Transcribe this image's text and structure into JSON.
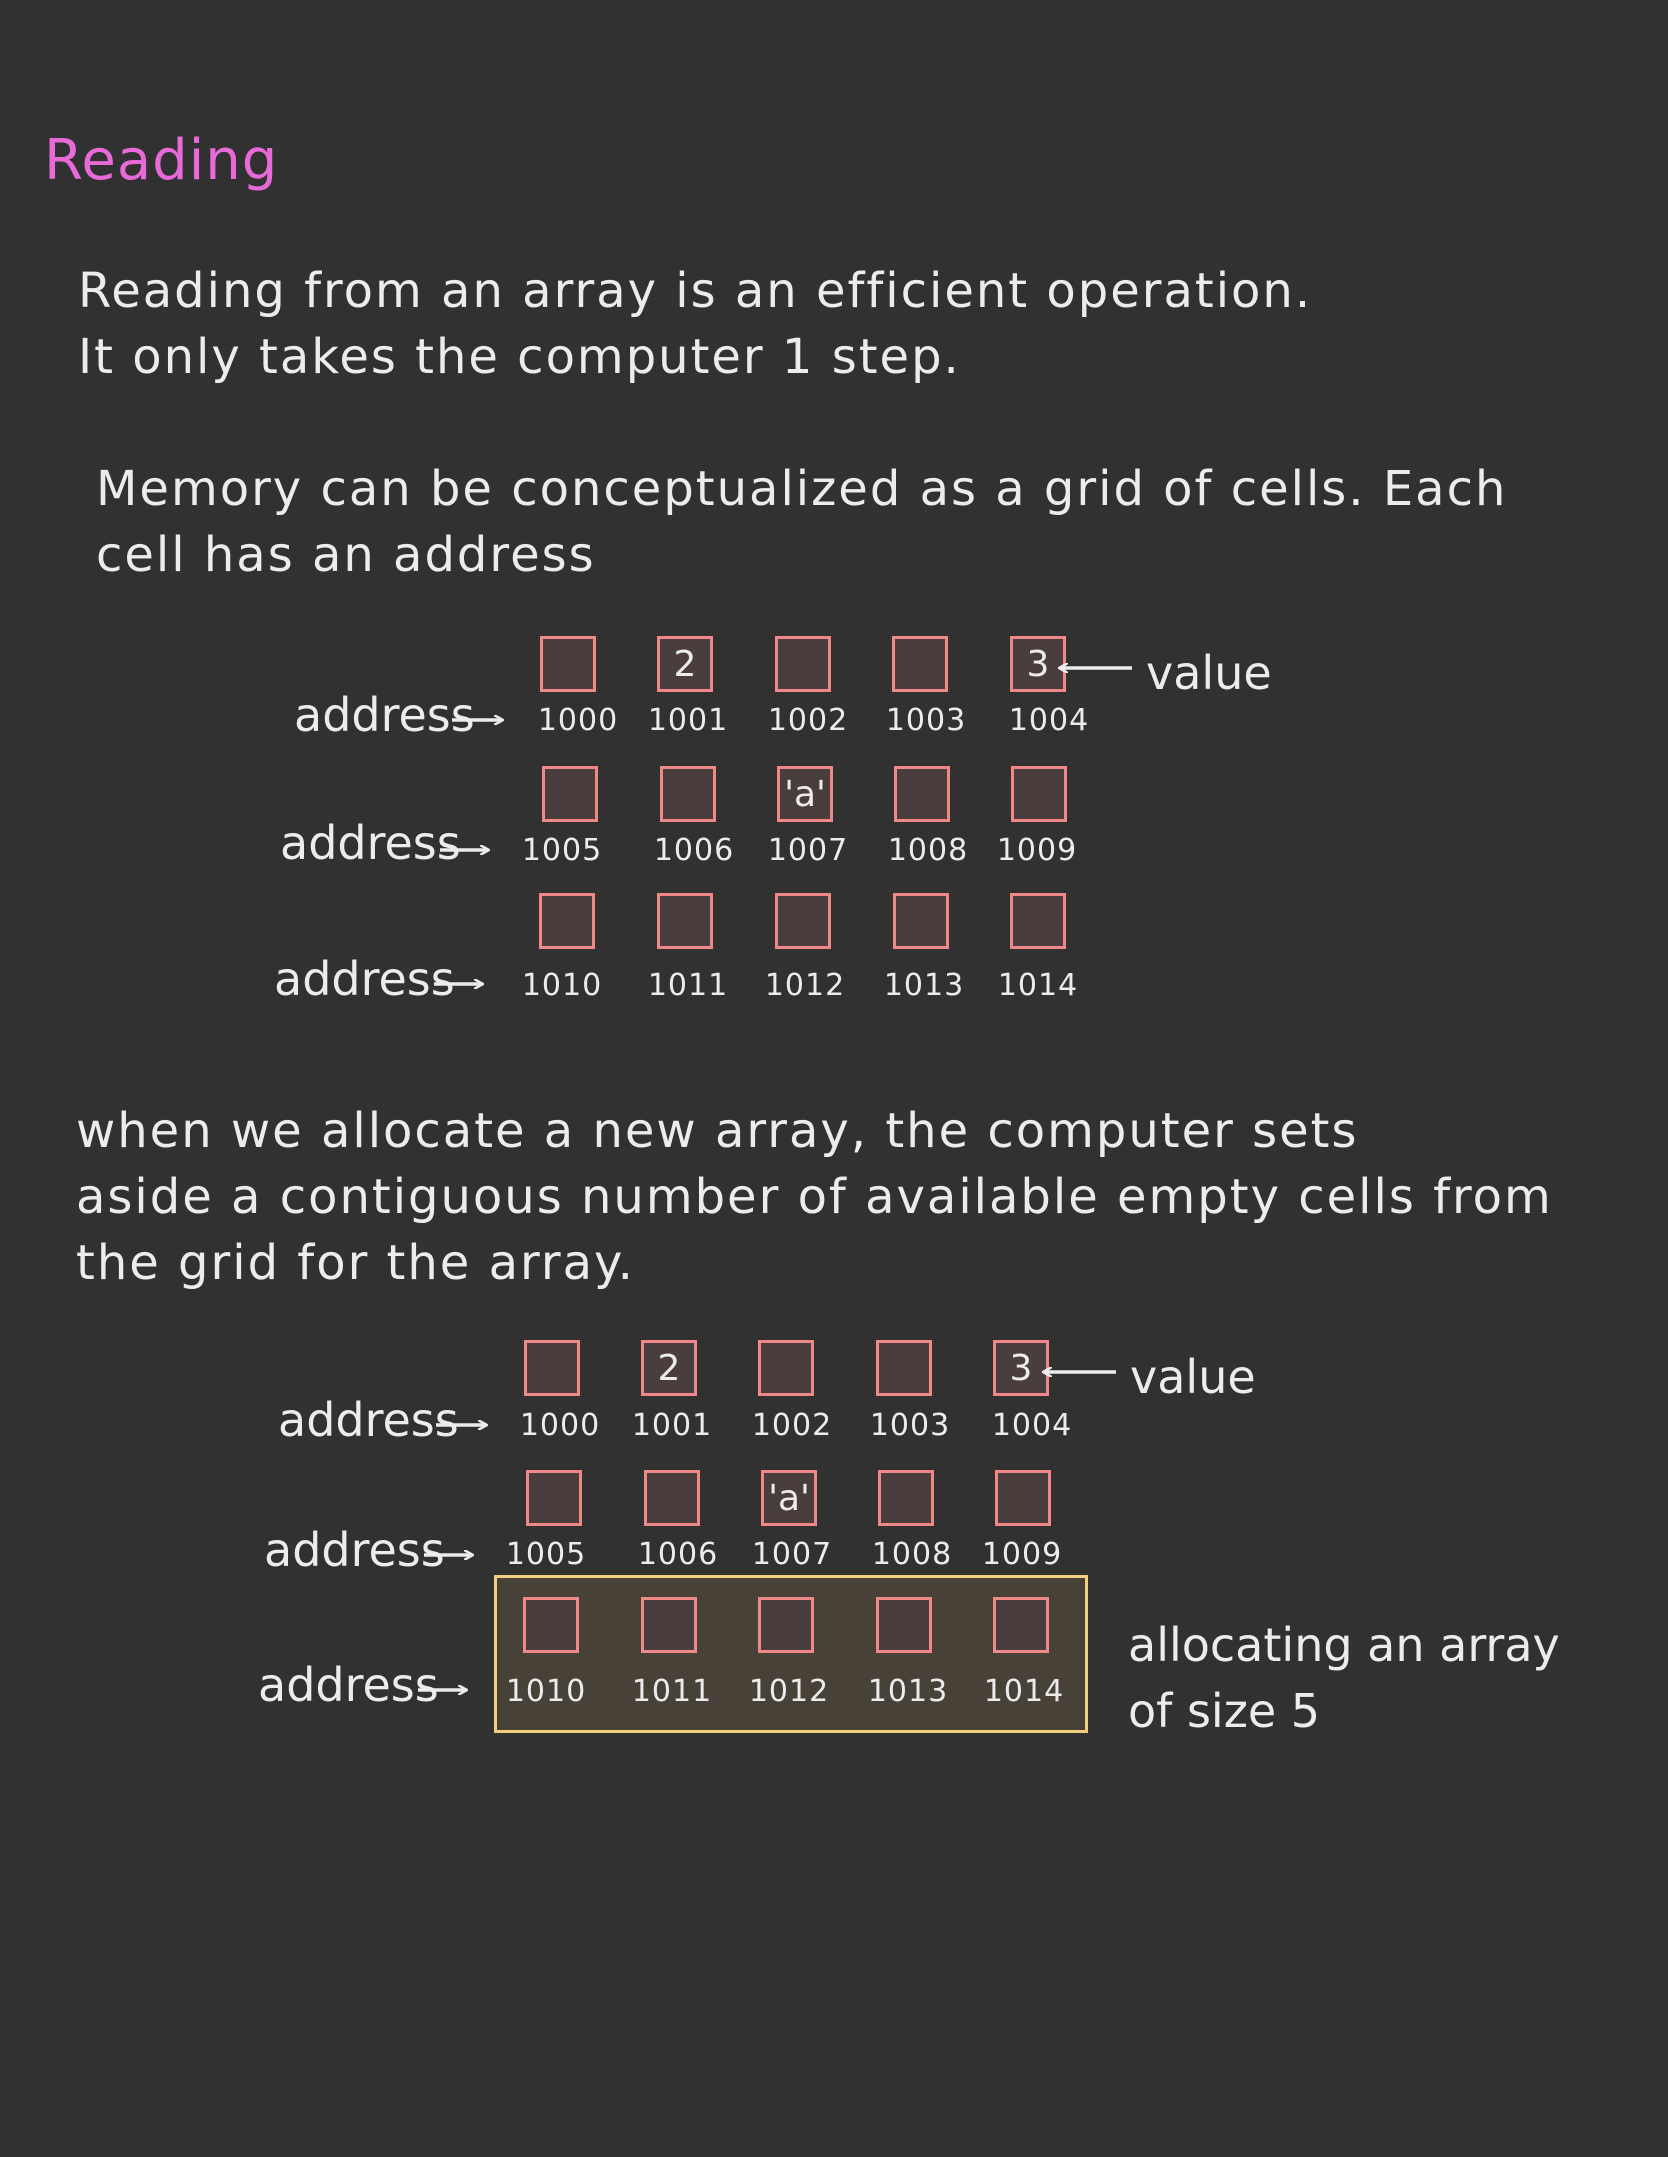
{
  "heading": "Reading",
  "paragraphs": {
    "p1": "Reading from an array is an efficient operation.\nIt only takes the computer 1 step.",
    "p2": "Memory can be conceptualized as a grid of cells. Each\ncell has an address",
    "p3": "when we allocate a new array, the computer sets\naside a contiguous number of available empty cells from\nthe grid for the array."
  },
  "row_label": "address",
  "value_label": "value",
  "grid1": {
    "rows": [
      {
        "cells": [
          {
            "value": "",
            "address": "1000"
          },
          {
            "value": "2",
            "address": "1001"
          },
          {
            "value": "",
            "address": "1002"
          },
          {
            "value": "",
            "address": "1003"
          },
          {
            "value": "3",
            "address": "1004"
          }
        ]
      },
      {
        "cells": [
          {
            "value": "",
            "address": "1005"
          },
          {
            "value": "",
            "address": "1006"
          },
          {
            "value": "'a'",
            "address": "1007"
          },
          {
            "value": "",
            "address": "1008"
          },
          {
            "value": "",
            "address": "1009"
          }
        ]
      },
      {
        "cells": [
          {
            "value": "",
            "address": "1010"
          },
          {
            "value": "",
            "address": "1011"
          },
          {
            "value": "",
            "address": "1012"
          },
          {
            "value": "",
            "address": "1013"
          },
          {
            "value": "",
            "address": "1014"
          }
        ]
      }
    ]
  },
  "grid2": {
    "rows": [
      {
        "cells": [
          {
            "value": "",
            "address": "1000"
          },
          {
            "value": "2",
            "address": "1001"
          },
          {
            "value": "",
            "address": "1002"
          },
          {
            "value": "",
            "address": "1003"
          },
          {
            "value": "3",
            "address": "1004"
          }
        ]
      },
      {
        "cells": [
          {
            "value": "",
            "address": "1005"
          },
          {
            "value": "",
            "address": "1006"
          },
          {
            "value": "'a'",
            "address": "1007"
          },
          {
            "value": "",
            "address": "1008"
          },
          {
            "value": "",
            "address": "1009"
          }
        ]
      },
      {
        "cells": [
          {
            "value": "",
            "address": "1010"
          },
          {
            "value": "",
            "address": "1011"
          },
          {
            "value": "",
            "address": "1012"
          },
          {
            "value": "",
            "address": "1013"
          },
          {
            "value": "",
            "address": "1014"
          }
        ]
      }
    ]
  },
  "allocation_note": "allocating an array\nof size 5",
  "colors": {
    "background": "#313131",
    "heading": "#e86ad9",
    "cell_border": "#f08888",
    "allocation_border": "#f2cf7c",
    "text": "#ececec"
  }
}
